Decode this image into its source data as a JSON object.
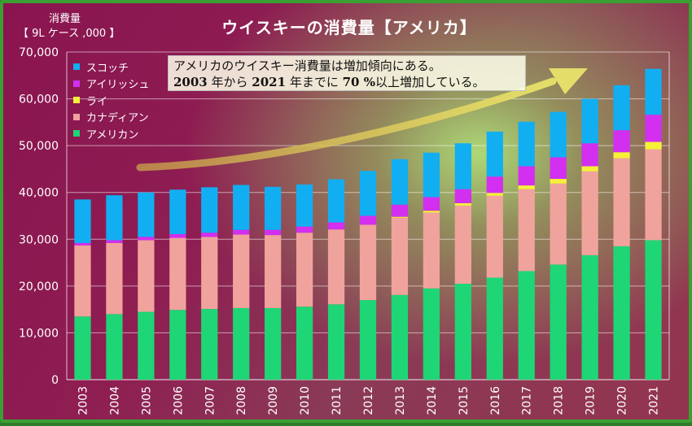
{
  "title": "ウイスキーの消費量【アメリカ】",
  "unit_line1": "消費量",
  "unit_line2": "【 9L ケース ,000 】",
  "annotation": {
    "line1": "アメリカのウイスキー消費量は増加傾向にある。",
    "line2_prefix": "2003",
    "line2_a": " 年から ",
    "line2_year": "2021",
    "line2_b": " 年までに ",
    "line2_pct": "70 %",
    "line2_c": "以上増加している。"
  },
  "colors": {
    "scotch": "#12aef2",
    "irish": "#d22ff0",
    "rye": "#f6f03a",
    "canadian": "#f0a39c",
    "american": "#1ed675",
    "arrow": "#e8e060"
  },
  "chart_data": {
    "type": "bar",
    "stacked": true,
    "title": "ウイスキーの消費量【アメリカ】",
    "ylabel": "消費量 【 9L ケース ,000 】",
    "ylim": [
      0,
      70000
    ],
    "yticks": [
      "0",
      "10,000",
      "20,000",
      "30,000",
      "40,000",
      "50,000",
      "60,000",
      "70,000"
    ],
    "legend_position": "top-left",
    "grid": true,
    "categories": [
      "2003",
      "2004",
      "2005",
      "2006",
      "2007",
      "2008",
      "2009",
      "2010",
      "2011",
      "2012",
      "2013",
      "2014",
      "2015",
      "2016",
      "2017",
      "2018",
      "2019",
      "2020",
      "2021"
    ],
    "series": [
      {
        "name": "アメリカン",
        "key": "american",
        "values": [
          13500,
          14000,
          14500,
          14900,
          15100,
          15300,
          15300,
          15600,
          16100,
          17000,
          18100,
          19500,
          20500,
          21800,
          23200,
          24600,
          26600,
          28500,
          29800
        ]
      },
      {
        "name": "カナディアン",
        "key": "canadian",
        "values": [
          15200,
          15200,
          15300,
          15400,
          15400,
          15700,
          15600,
          15800,
          16000,
          16100,
          16500,
          16200,
          16700,
          17500,
          17500,
          17300,
          17900,
          18800,
          19400
        ]
      },
      {
        "name": "ライ",
        "key": "rye",
        "values": [
          0,
          0,
          0,
          0,
          0,
          0,
          0,
          0,
          0,
          0,
          200,
          400,
          500,
          600,
          800,
          1000,
          1100,
          1300,
          1600
        ]
      },
      {
        "name": "アイリッシュ",
        "key": "irish",
        "values": [
          500,
          600,
          700,
          800,
          900,
          1000,
          1100,
          1300,
          1500,
          1900,
          2600,
          2900,
          3000,
          3500,
          4100,
          4600,
          4900,
          4700,
          5800
        ]
      },
      {
        "name": "スコッチ",
        "key": "scotch",
        "values": [
          9300,
          9600,
          9500,
          9500,
          9700,
          9600,
          9200,
          9000,
          9200,
          9600,
          9700,
          9500,
          9800,
          9600,
          9500,
          9700,
          9500,
          9600,
          9800
        ]
      }
    ],
    "legend_order": [
      "スコッチ",
      "アイリッシュ",
      "ライ",
      "カナディアン",
      "アメリカン"
    ]
  }
}
